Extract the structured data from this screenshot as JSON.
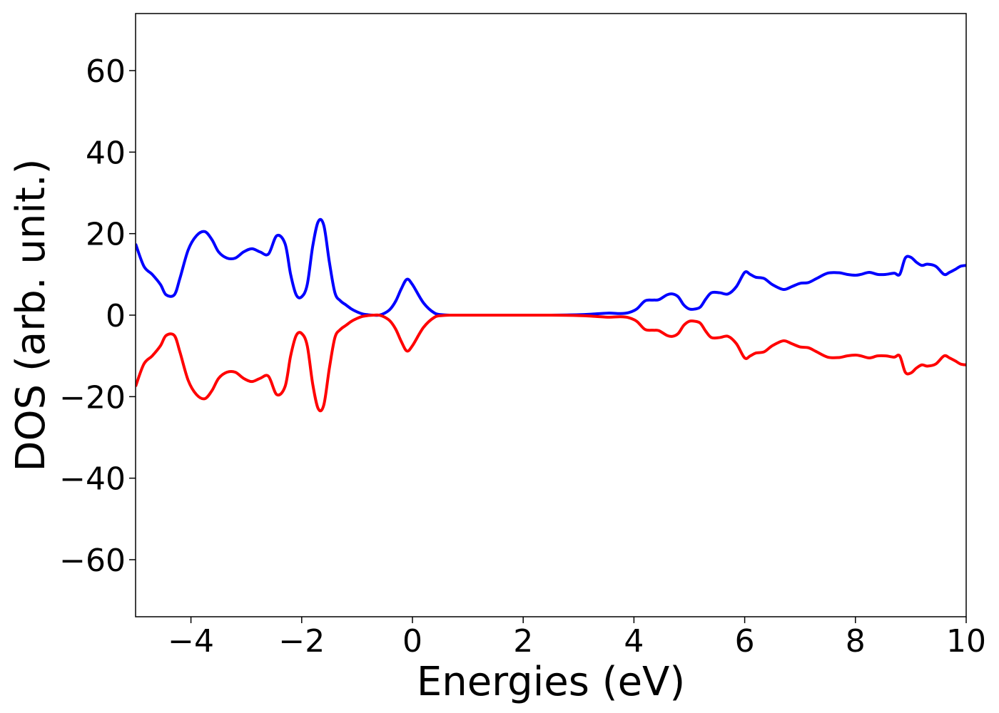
{
  "chart_data": {
    "type": "line",
    "title": "",
    "xlabel": "Energies (eV)",
    "ylabel": "DOS (arb. unit.)",
    "xlim": [
      -5,
      10
    ],
    "ylim": [
      -74,
      74
    ],
    "xticks": [
      -4,
      -2,
      0,
      2,
      4,
      6,
      8,
      10
    ],
    "xtick_labels": [
      "−4",
      "−2",
      "0",
      "2",
      "4",
      "6",
      "8",
      "10"
    ],
    "yticks": [
      -60,
      -40,
      -20,
      0,
      20,
      40,
      60
    ],
    "ytick_labels": [
      "−60",
      "−40",
      "−20",
      "0",
      "20",
      "40",
      "60"
    ],
    "grid": false,
    "legend": "none",
    "series": [
      {
        "color": "#0000ff",
        "x": [
          -5.0,
          -4.85,
          -4.7,
          -4.55,
          -4.45,
          -4.3,
          -4.2,
          -4.05,
          -3.9,
          -3.75,
          -3.62,
          -3.5,
          -3.35,
          -3.2,
          -3.05,
          -2.9,
          -2.75,
          -2.6,
          -2.45,
          -2.3,
          -2.2,
          -2.1,
          -2.0,
          -1.9,
          -1.8,
          -1.7,
          -1.6,
          -1.5,
          -1.4,
          -1.3,
          -1.2,
          -1.1,
          -1.0,
          -0.9,
          -0.8,
          -0.7,
          -0.6,
          -0.5,
          -0.4,
          -0.3,
          -0.2,
          -0.1,
          0.0,
          0.2,
          0.4,
          0.55,
          0.7,
          0.82,
          0.92,
          1.0,
          1.1,
          1.2,
          1.3,
          1.4,
          1.6,
          2.0,
          2.5,
          3.0,
          3.3,
          3.55,
          3.75,
          3.9,
          4.05,
          4.2,
          4.35,
          4.45,
          4.6,
          4.7,
          4.8,
          4.9,
          5.0,
          5.1,
          5.2,
          5.3,
          5.4,
          5.55,
          5.7,
          5.85,
          6.0,
          6.1,
          6.2,
          6.35,
          6.5,
          6.7,
          6.85,
          7.0,
          7.15,
          7.3,
          7.5,
          7.7,
          7.85,
          8.0,
          8.1,
          8.25,
          8.4,
          8.55,
          8.7,
          8.8,
          8.9,
          9.0,
          9.1,
          9.2,
          9.3,
          9.45,
          9.6,
          9.7,
          9.8,
          9.9,
          10.0
        ],
        "y": [
          17.5,
          12.0,
          10.0,
          7.5,
          5.0,
          5.0,
          9.0,
          16.0,
          19.5,
          20.5,
          18.5,
          15.5,
          14.0,
          14.0,
          15.5,
          16.3,
          15.5,
          15.0,
          19.5,
          17.5,
          10.0,
          5.0,
          4.5,
          7.5,
          17.0,
          23.0,
          22.0,
          13.0,
          5.5,
          3.5,
          2.5,
          1.5,
          0.8,
          0.3,
          0.1,
          0.0,
          0.0,
          0.5,
          1.5,
          3.5,
          6.5,
          8.8,
          7.5,
          3.0,
          0.5,
          0.1,
          0.0,
          0.0,
          0.0,
          0.0,
          0.0,
          0.0,
          0.0,
          0.0,
          0.0,
          0.0,
          0.0,
          0.1,
          0.3,
          0.5,
          0.4,
          0.6,
          1.5,
          3.5,
          3.7,
          3.8,
          5.0,
          5.2,
          4.5,
          2.5,
          1.5,
          1.5,
          2.0,
          4.0,
          5.5,
          5.5,
          5.2,
          7.0,
          10.5,
          10.0,
          9.3,
          9.0,
          7.5,
          6.3,
          7.0,
          7.8,
          8.0,
          9.0,
          10.3,
          10.4,
          10.0,
          9.8,
          10.0,
          10.5,
          10.0,
          10.0,
          10.3,
          10.0,
          14.0,
          14.2,
          13.0,
          12.2,
          12.5,
          12.0,
          10.0,
          10.5,
          11.2,
          12.0,
          12.2
        ]
      },
      {
        "color": "#ff0000",
        "x": [
          -5.0,
          -4.85,
          -4.7,
          -4.55,
          -4.45,
          -4.3,
          -4.2,
          -4.05,
          -3.9,
          -3.75,
          -3.62,
          -3.5,
          -3.35,
          -3.2,
          -3.05,
          -2.9,
          -2.75,
          -2.6,
          -2.45,
          -2.3,
          -2.2,
          -2.1,
          -2.0,
          -1.9,
          -1.8,
          -1.7,
          -1.6,
          -1.5,
          -1.4,
          -1.3,
          -1.2,
          -1.1,
          -1.0,
          -0.9,
          -0.8,
          -0.7,
          -0.6,
          -0.5,
          -0.4,
          -0.3,
          -0.2,
          -0.1,
          0.0,
          0.2,
          0.4,
          0.55,
          0.7,
          0.82,
          0.92,
          1.0,
          1.1,
          1.2,
          1.3,
          1.4,
          1.6,
          2.0,
          2.5,
          3.0,
          3.3,
          3.55,
          3.75,
          3.9,
          4.05,
          4.2,
          4.35,
          4.45,
          4.6,
          4.7,
          4.8,
          4.9,
          5.0,
          5.1,
          5.2,
          5.3,
          5.4,
          5.55,
          5.7,
          5.85,
          6.0,
          6.1,
          6.2,
          6.35,
          6.5,
          6.7,
          6.85,
          7.0,
          7.15,
          7.3,
          7.5,
          7.7,
          7.85,
          8.0,
          8.1,
          8.25,
          8.4,
          8.55,
          8.7,
          8.8,
          8.9,
          9.0,
          9.1,
          9.2,
          9.3,
          9.45,
          9.6,
          9.7,
          9.8,
          9.9,
          10.0
        ],
        "y": [
          -17.5,
          -12.0,
          -10.0,
          -7.5,
          -5.0,
          -5.0,
          -9.0,
          -16.0,
          -19.5,
          -20.5,
          -18.5,
          -15.5,
          -14.0,
          -14.0,
          -15.5,
          -16.3,
          -15.5,
          -15.0,
          -19.5,
          -17.5,
          -10.0,
          -5.0,
          -4.5,
          -7.5,
          -17.0,
          -23.0,
          -22.0,
          -13.0,
          -5.5,
          -3.5,
          -2.5,
          -1.5,
          -0.8,
          -0.3,
          -0.1,
          0.0,
          0.0,
          -0.5,
          -1.5,
          -3.5,
          -6.5,
          -8.8,
          -7.5,
          -3.0,
          -0.5,
          -0.1,
          0.0,
          0.0,
          0.0,
          0.0,
          0.0,
          0.0,
          0.0,
          0.0,
          0.0,
          0.0,
          0.0,
          -0.1,
          -0.3,
          -0.5,
          -0.4,
          -0.6,
          -1.5,
          -3.5,
          -3.7,
          -3.8,
          -5.0,
          -5.2,
          -4.5,
          -2.5,
          -1.5,
          -1.5,
          -2.0,
          -4.0,
          -5.5,
          -5.5,
          -5.2,
          -7.0,
          -10.5,
          -10.0,
          -9.3,
          -9.0,
          -7.5,
          -6.3,
          -7.0,
          -7.8,
          -8.0,
          -9.0,
          -10.3,
          -10.4,
          -10.0,
          -9.8,
          -10.0,
          -10.5,
          -10.0,
          -10.0,
          -10.3,
          -10.0,
          -14.0,
          -14.2,
          -13.0,
          -12.2,
          -12.5,
          -12.0,
          -10.0,
          -10.5,
          -11.2,
          -12.0,
          -12.2
        ]
      }
    ]
  }
}
